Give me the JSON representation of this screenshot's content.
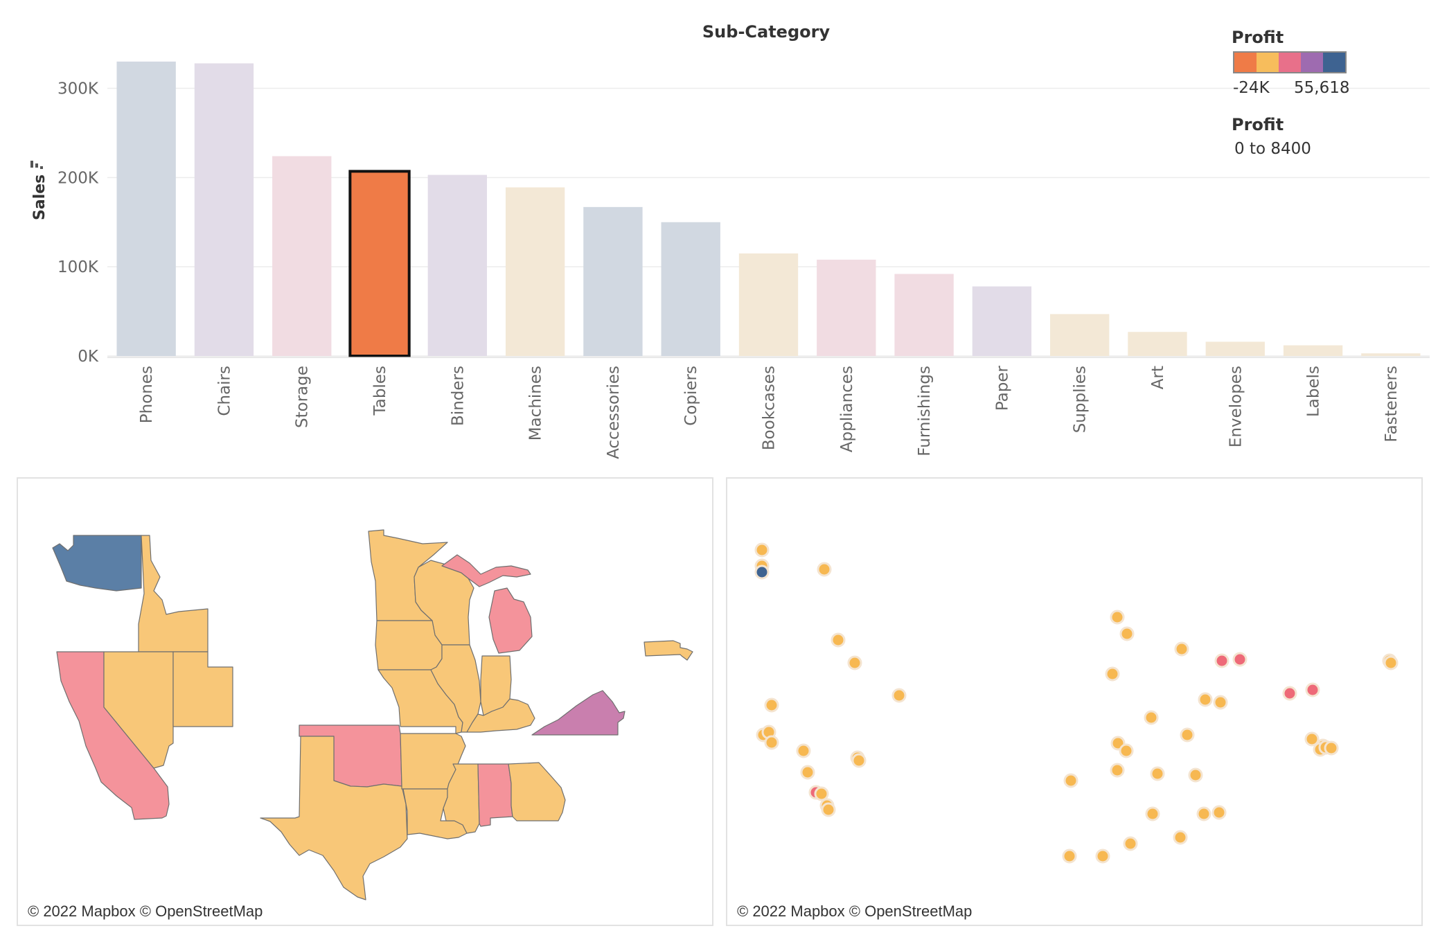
{
  "chart_data": {
    "type": "bar",
    "title": "Sub-Category",
    "ylabel": "Sales",
    "ylim": [
      0,
      340000
    ],
    "yticks": [
      0,
      100000,
      200000,
      300000
    ],
    "ytick_labels": [
      "0K",
      "100K",
      "200K",
      "300K"
    ],
    "categories": [
      "Phones",
      "Chairs",
      "Storage",
      "Tables",
      "Binders",
      "Machines",
      "Accessories",
      "Copiers",
      "Bookcases",
      "Appliances",
      "Furnishings",
      "Paper",
      "Supplies",
      "Art",
      "Envelopes",
      "Labels",
      "Fasteners"
    ],
    "values": [
      330000,
      328000,
      224000,
      207000,
      203000,
      189000,
      167000,
      150000,
      115000,
      108000,
      92000,
      78000,
      47000,
      27000,
      16000,
      12000,
      3000
    ],
    "bar_colors": [
      "#d1d8e1",
      "#e2dce8",
      "#f1dce2",
      "#ef7b47",
      "#e2dce8",
      "#f3e8d6",
      "#d1d8e1",
      "#d1d8e1",
      "#f3e8d6",
      "#f1dce2",
      "#f1dce2",
      "#e2dce8",
      "#f3e8d6",
      "#f3e8d6",
      "#f3e8d6",
      "#f3e8d6",
      "#f3e8d6"
    ],
    "highlighted": "Tables",
    "grid": true
  },
  "legend": {
    "color_title": "Profit",
    "ramp_colors": [
      "#ef7b47",
      "#f7bd5c",
      "#e8708a",
      "#9e6bb0",
      "#3e6391"
    ],
    "min_label": "-24K",
    "max_label": "55,618",
    "size_title": "Profit",
    "size_range": "0 to 8400"
  },
  "maps": {
    "left_attribution": "© 2022 Mapbox © OpenStreetMap",
    "right_attribution": "© 2022 Mapbox © OpenStreetMap",
    "state_colors": {
      "washington": "#5b7fa6",
      "default": "#f8c778",
      "loss": "#f4939b",
      "virginia": "#c97fae"
    },
    "dot_colors": {
      "default": "#f7b851",
      "loss": "#ee6a78",
      "high": "#3e6391"
    }
  }
}
